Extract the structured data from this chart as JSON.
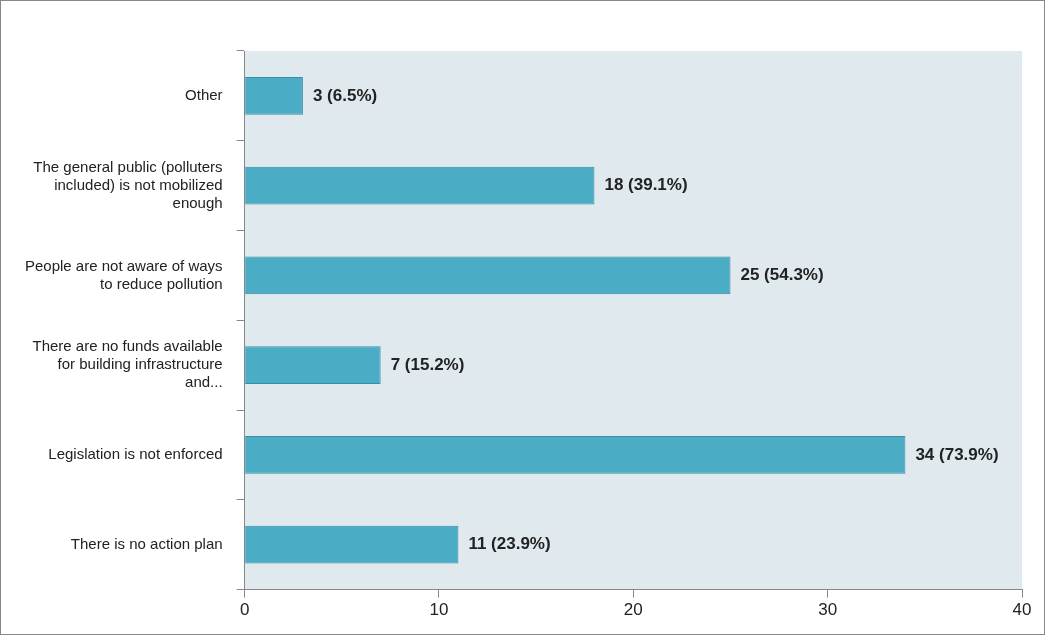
{
  "chart_data": {
    "type": "bar",
    "orientation": "horizontal",
    "categories": [
      "Other",
      "The general public (polluters included) is not mobilized enough",
      "People are not aware of ways to reduce pollution",
      "There are no funds available for building infrastructure and...",
      "Legislation is not enforced",
      "There is no action plan"
    ],
    "values": [
      3,
      18,
      25,
      7,
      34,
      11
    ],
    "value_labels": [
      "3 (6.5%)",
      "18 (39.1%)",
      "25 (54.3%)",
      "7 (15.2%)",
      "34 (73.9%)",
      "11 (23.9%)"
    ],
    "color": "#4bacc6",
    "xlim": [
      0,
      40
    ],
    "xticks": [
      0,
      10,
      20,
      30,
      40
    ],
    "grid": false,
    "legend": false
  }
}
